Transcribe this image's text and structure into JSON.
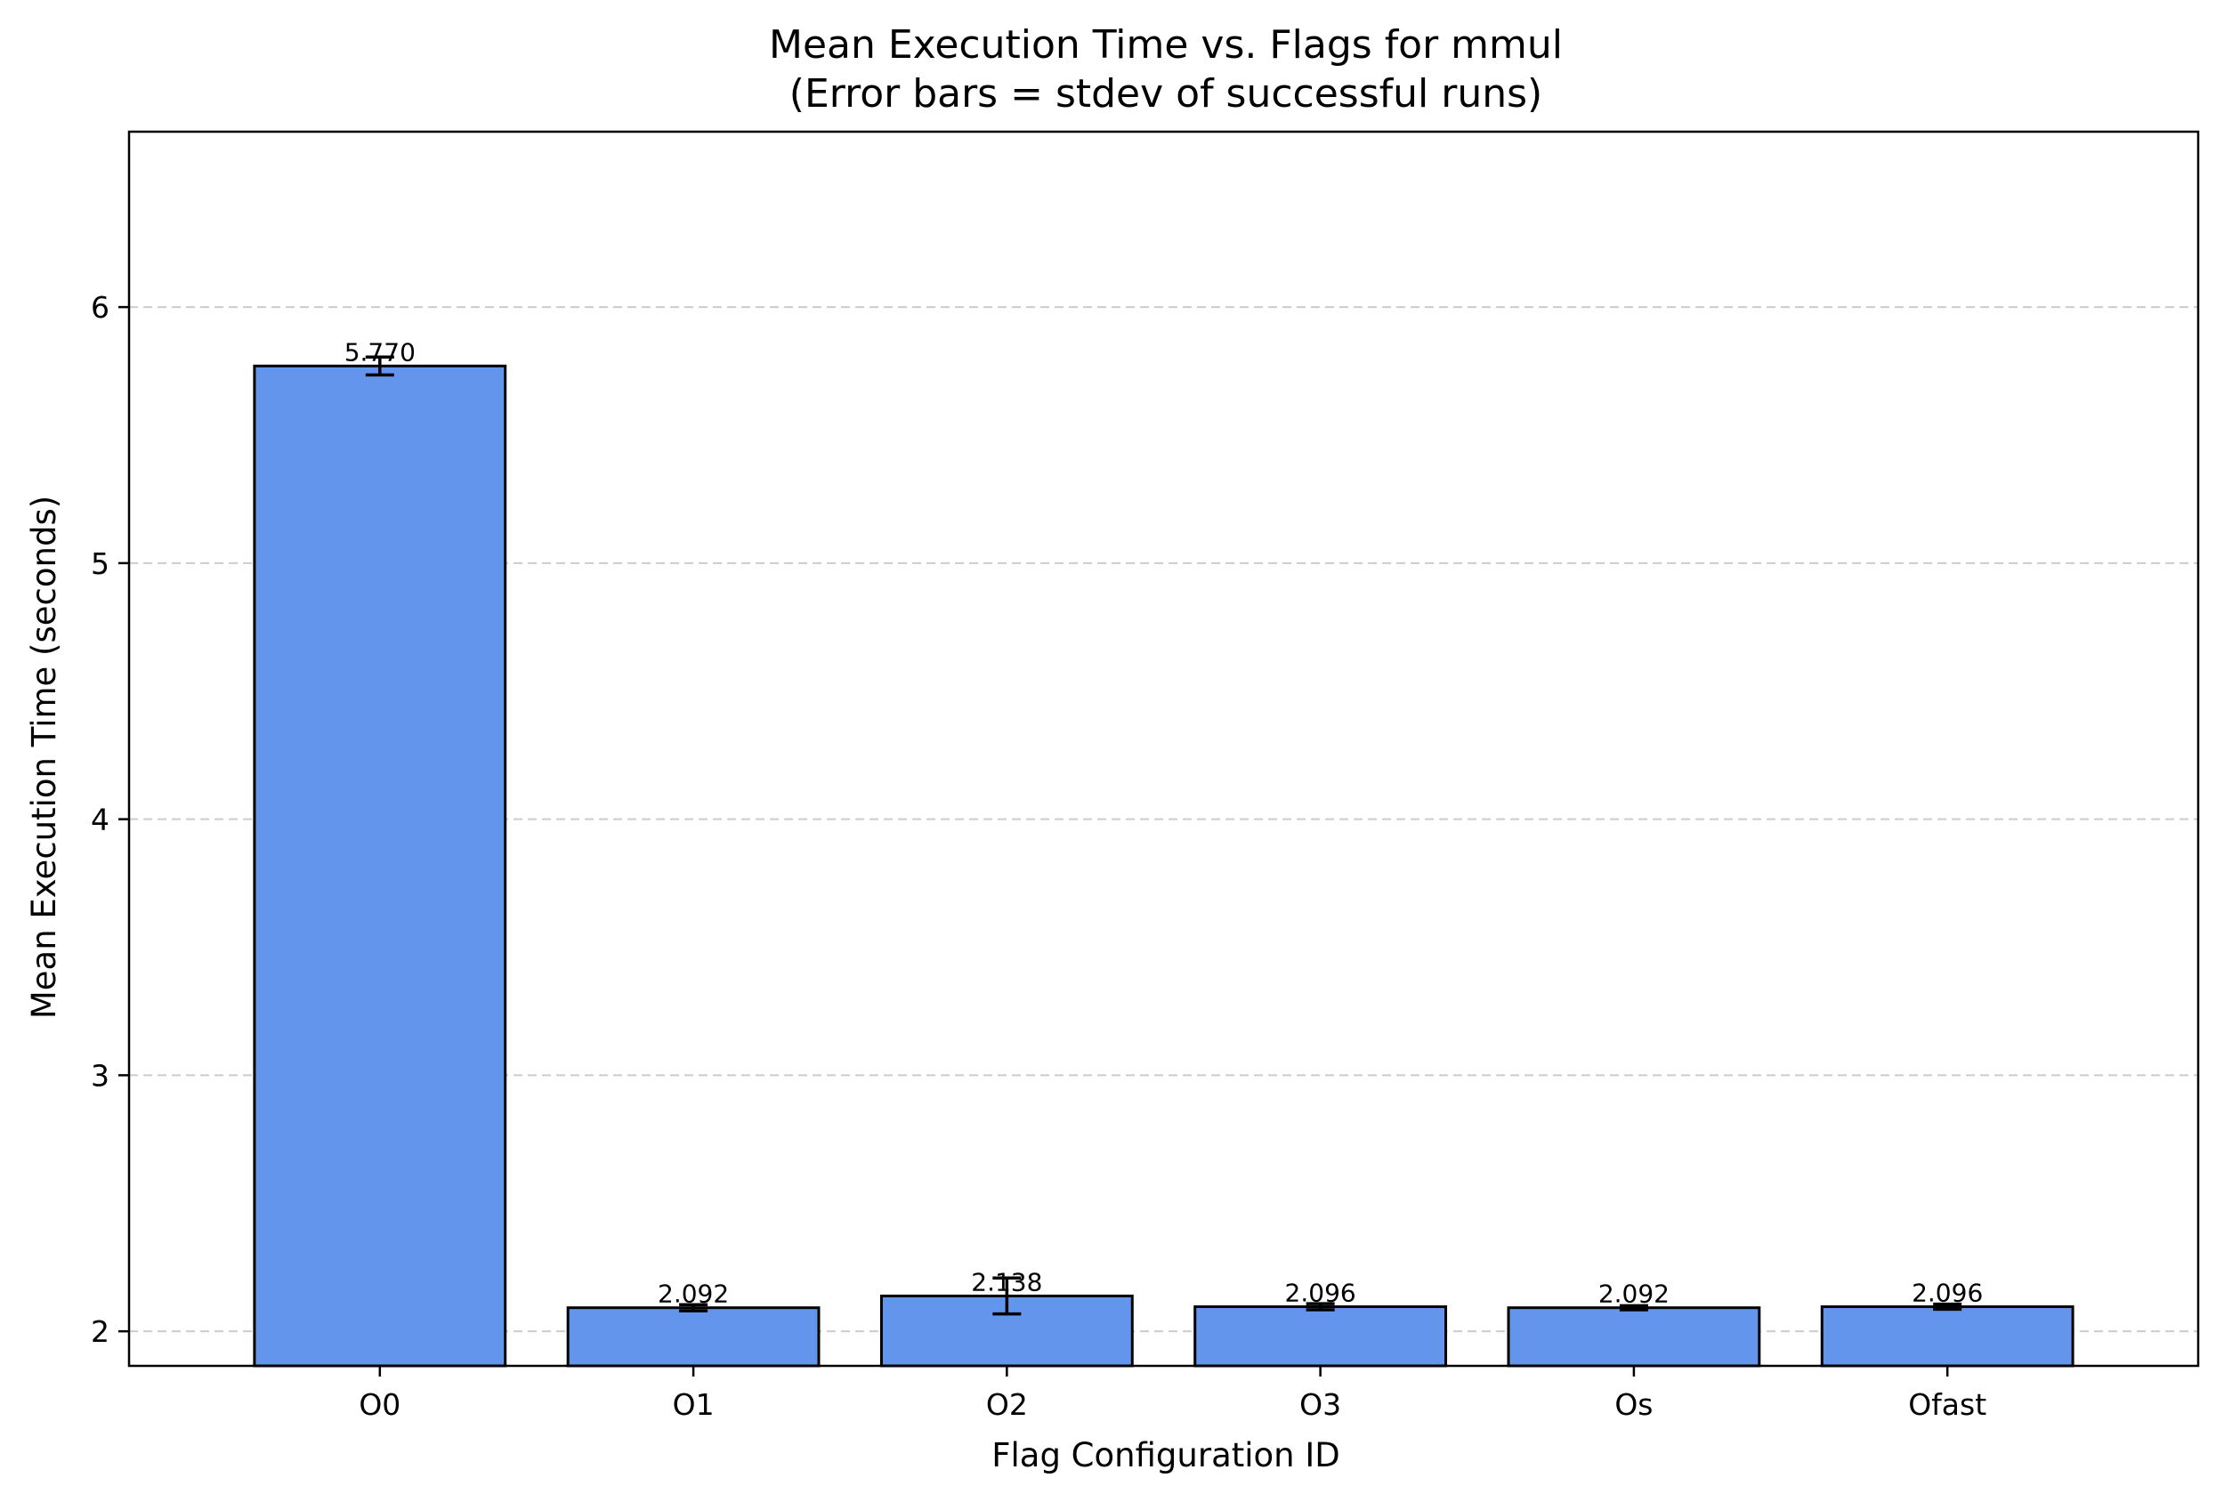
{
  "chart_data": {
    "type": "bar",
    "title": "Mean Execution Time vs. Flags for mmul",
    "subtitle": "(Error bars = stdev of successful runs)",
    "xlabel": "Flag Configuration ID",
    "ylabel": "Mean Execution Time (seconds)",
    "categories": [
      "O0",
      "O1",
      "O2",
      "O3",
      "Os",
      "Ofast"
    ],
    "values": [
      5.77,
      2.092,
      2.138,
      2.096,
      2.092,
      2.096
    ],
    "value_labels": [
      "5.770",
      "2.092",
      "2.138",
      "2.096",
      "2.092",
      "2.096"
    ],
    "errors": [
      0.035,
      0.012,
      0.07,
      0.012,
      0.008,
      0.01
    ],
    "ylim": [
      1.865,
      6.685
    ],
    "yticks": [
      2,
      3,
      4,
      5,
      6
    ],
    "grid": "y dashed",
    "bar_color": "#6495ED"
  }
}
